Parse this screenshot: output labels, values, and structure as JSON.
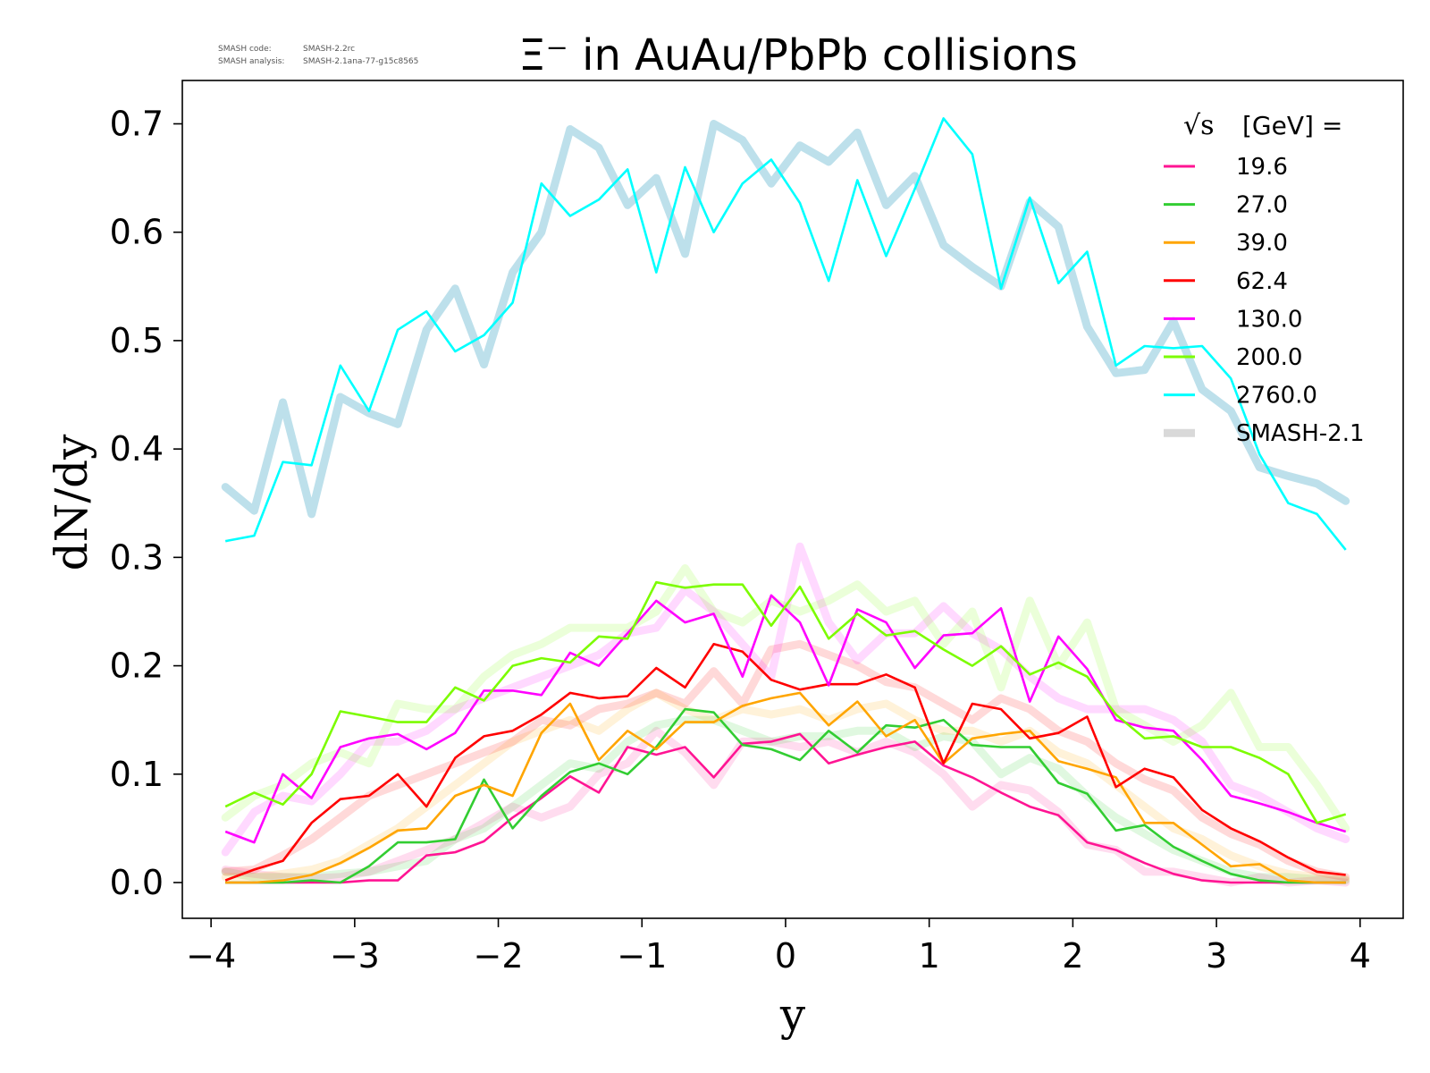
{
  "version": {
    "code_label": "SMASH code:",
    "code_value": "SMASH-2.2rc",
    "analysis_label": "SMASH analysis:",
    "analysis_value": "SMASH-2.1ana-77-g15c8565"
  },
  "chart_data": {
    "type": "line",
    "title": "Ξ⁻ in AuAu/PbPb collisions",
    "xlabel": "y",
    "ylabel": "dN/dy",
    "xlim": [
      -4.2,
      4.3
    ],
    "ylim": [
      -0.033,
      0.74
    ],
    "xticks": [
      -4,
      -3,
      -2,
      -1,
      0,
      1,
      2,
      3,
      4
    ],
    "xtick_labels": [
      "−4",
      "−3",
      "−2",
      "−1",
      "0",
      "1",
      "2",
      "3",
      "4"
    ],
    "yticks": [
      0.0,
      0.1,
      0.2,
      0.3,
      0.4,
      0.5,
      0.6,
      0.7
    ],
    "ytick_labels": [
      "0.0",
      "0.1",
      "0.2",
      "0.3",
      "0.4",
      "0.5",
      "0.6",
      "0.7"
    ],
    "grid": false,
    "legend_position": "top-right",
    "legend_title_sqrt": "√s",
    "legend_title_rest": "[GeV] =",
    "reference_label": "SMASH-2.1",
    "reference_legend_color": "#d9d9d9",
    "x": [
      -3.9,
      -3.7,
      -3.5,
      -3.3,
      -3.1,
      -2.9,
      -2.7,
      -2.5,
      -2.3,
      -2.1,
      -1.9,
      -1.7,
      -1.5,
      -1.3,
      -1.1,
      -0.9,
      -0.7,
      -0.5,
      -0.3,
      -0.1,
      0.1,
      0.3,
      0.5,
      0.7,
      0.9,
      1.1,
      1.3,
      1.5,
      1.7,
      1.9,
      2.1,
      2.3,
      2.5,
      2.7,
      2.9,
      3.1,
      3.3,
      3.5,
      3.7,
      3.9
    ],
    "series": [
      {
        "name": "19.6",
        "color": "#ff1493",
        "values": [
          0.0,
          0.0,
          0.0,
          0.0,
          0.0,
          0.002,
          0.002,
          0.025,
          0.028,
          0.038,
          0.06,
          0.078,
          0.098,
          0.083,
          0.125,
          0.118,
          0.125,
          0.097,
          0.128,
          0.13,
          0.137,
          0.11,
          0.118,
          0.125,
          0.13,
          0.108,
          0.097,
          0.083,
          0.07,
          0.062,
          0.037,
          0.03,
          0.018,
          0.008,
          0.002,
          0.0,
          0.0,
          0.0,
          0.0,
          0.0
        ],
        "reference": [
          0.012,
          0.008,
          0.005,
          0.004,
          0.005,
          0.01,
          0.02,
          0.03,
          0.04,
          0.055,
          0.07,
          0.06,
          0.07,
          0.1,
          0.11,
          0.14,
          0.12,
          0.09,
          0.13,
          0.13,
          0.125,
          0.13,
          0.12,
          0.13,
          0.12,
          0.1,
          0.07,
          0.09,
          0.085,
          0.065,
          0.035,
          0.03,
          0.01,
          0.01,
          0.005,
          0.0,
          0.005,
          0.0,
          0.002,
          0.0
        ]
      },
      {
        "name": "27.0",
        "color": "#32cd32",
        "values": [
          0.0,
          0.0,
          0.0,
          0.002,
          0.0,
          0.015,
          0.037,
          0.037,
          0.04,
          0.095,
          0.05,
          0.08,
          0.102,
          0.11,
          0.1,
          0.125,
          0.16,
          0.157,
          0.127,
          0.123,
          0.113,
          0.14,
          0.12,
          0.145,
          0.143,
          0.15,
          0.127,
          0.125,
          0.125,
          0.092,
          0.082,
          0.048,
          0.053,
          0.033,
          0.02,
          0.008,
          0.002,
          0.0,
          0.0,
          0.0
        ],
        "reference": [
          0.01,
          0.005,
          0.005,
          0.005,
          0.008,
          0.01,
          0.015,
          0.02,
          0.04,
          0.05,
          0.07,
          0.09,
          0.11,
          0.105,
          0.13,
          0.145,
          0.15,
          0.15,
          0.14,
          0.13,
          0.135,
          0.135,
          0.14,
          0.14,
          0.125,
          0.135,
          0.13,
          0.1,
          0.115,
          0.105,
          0.08,
          0.06,
          0.045,
          0.03,
          0.02,
          0.01,
          0.005,
          0.005,
          0.003,
          0.002
        ]
      },
      {
        "name": "39.0",
        "color": "#ffa500",
        "values": [
          0.0,
          0.0,
          0.002,
          0.007,
          0.018,
          0.032,
          0.048,
          0.05,
          0.08,
          0.09,
          0.08,
          0.138,
          0.165,
          0.113,
          0.14,
          0.123,
          0.148,
          0.148,
          0.163,
          0.17,
          0.175,
          0.145,
          0.167,
          0.135,
          0.15,
          0.11,
          0.133,
          0.137,
          0.14,
          0.112,
          0.105,
          0.097,
          0.055,
          0.055,
          0.035,
          0.015,
          0.017,
          0.002,
          0.0,
          0.0
        ],
        "reference": [
          0.005,
          0.005,
          0.008,
          0.012,
          0.02,
          0.035,
          0.05,
          0.07,
          0.09,
          0.11,
          0.13,
          0.14,
          0.15,
          0.14,
          0.16,
          0.175,
          0.16,
          0.15,
          0.16,
          0.155,
          0.16,
          0.15,
          0.16,
          0.165,
          0.15,
          0.14,
          0.14,
          0.13,
          0.14,
          0.12,
          0.11,
          0.09,
          0.07,
          0.05,
          0.04,
          0.025,
          0.015,
          0.008,
          0.005,
          0.003
        ]
      },
      {
        "name": "62.4",
        "color": "#ff0000",
        "values": [
          0.002,
          0.012,
          0.02,
          0.055,
          0.077,
          0.08,
          0.1,
          0.07,
          0.115,
          0.135,
          0.14,
          0.155,
          0.175,
          0.17,
          0.172,
          0.198,
          0.18,
          0.22,
          0.213,
          0.187,
          0.178,
          0.183,
          0.183,
          0.192,
          0.18,
          0.11,
          0.165,
          0.16,
          0.133,
          0.138,
          0.153,
          0.088,
          0.105,
          0.097,
          0.067,
          0.05,
          0.038,
          0.023,
          0.01,
          0.007
        ],
        "reference": [
          0.01,
          0.012,
          0.025,
          0.04,
          0.06,
          0.08,
          0.09,
          0.1,
          0.11,
          0.12,
          0.13,
          0.15,
          0.145,
          0.16,
          0.165,
          0.175,
          0.165,
          0.195,
          0.165,
          0.215,
          0.22,
          0.21,
          0.2,
          0.185,
          0.18,
          0.165,
          0.15,
          0.17,
          0.16,
          0.14,
          0.13,
          0.11,
          0.095,
          0.085,
          0.06,
          0.045,
          0.035,
          0.02,
          0.01,
          0.005
        ]
      },
      {
        "name": "130.0",
        "color": "#ff00ff",
        "values": [
          0.047,
          0.037,
          0.1,
          0.078,
          0.125,
          0.133,
          0.137,
          0.123,
          0.138,
          0.177,
          0.177,
          0.173,
          0.212,
          0.2,
          0.23,
          0.26,
          0.24,
          0.248,
          0.19,
          0.265,
          0.24,
          0.182,
          0.252,
          0.24,
          0.198,
          0.228,
          0.23,
          0.253,
          0.167,
          0.227,
          0.197,
          0.15,
          0.143,
          0.14,
          0.113,
          0.08,
          0.073,
          0.065,
          0.055,
          0.047
        ],
        "reference": [
          0.028,
          0.065,
          0.08,
          0.075,
          0.1,
          0.13,
          0.13,
          0.14,
          0.16,
          0.17,
          0.18,
          0.19,
          0.2,
          0.21,
          0.23,
          0.235,
          0.27,
          0.25,
          0.22,
          0.19,
          0.31,
          0.24,
          0.205,
          0.23,
          0.23,
          0.255,
          0.23,
          0.215,
          0.19,
          0.17,
          0.16,
          0.16,
          0.16,
          0.15,
          0.13,
          0.09,
          0.08,
          0.065,
          0.05,
          0.04
        ]
      },
      {
        "name": "200.0",
        "color": "#7cfc00",
        "values": [
          0.07,
          0.083,
          0.072,
          0.1,
          0.158,
          0.153,
          0.148,
          0.148,
          0.18,
          0.168,
          0.2,
          0.207,
          0.203,
          0.227,
          0.225,
          0.277,
          0.272,
          0.275,
          0.275,
          0.237,
          0.273,
          0.225,
          0.248,
          0.228,
          0.232,
          0.215,
          0.2,
          0.218,
          0.192,
          0.203,
          0.19,
          0.155,
          0.133,
          0.135,
          0.125,
          0.125,
          0.115,
          0.1,
          0.055,
          0.063
        ],
        "reference": [
          0.06,
          0.08,
          0.09,
          0.11,
          0.12,
          0.11,
          0.165,
          0.16,
          0.16,
          0.19,
          0.21,
          0.22,
          0.235,
          0.235,
          0.235,
          0.25,
          0.29,
          0.25,
          0.24,
          0.26,
          0.25,
          0.26,
          0.275,
          0.25,
          0.26,
          0.22,
          0.25,
          0.18,
          0.26,
          0.2,
          0.24,
          0.16,
          0.145,
          0.13,
          0.145,
          0.175,
          0.125,
          0.125,
          0.09,
          0.05
        ]
      },
      {
        "name": "2760.0",
        "color": "#00ffff",
        "values": [
          0.315,
          0.32,
          0.388,
          0.385,
          0.477,
          0.435,
          0.51,
          0.527,
          0.49,
          0.505,
          0.535,
          0.645,
          0.615,
          0.63,
          0.658,
          0.563,
          0.66,
          0.6,
          0.645,
          0.667,
          0.627,
          0.555,
          0.648,
          0.578,
          0.64,
          0.705,
          0.672,
          0.548,
          0.632,
          0.553,
          0.582,
          0.477,
          0.495,
          0.493,
          0.495,
          0.465,
          0.395,
          0.35,
          0.34,
          0.307
        ],
        "reference": [
          0.365,
          0.343,
          0.443,
          0.34,
          0.448,
          0.433,
          0.423,
          0.51,
          0.548,
          0.478,
          0.563,
          0.6,
          0.695,
          0.678,
          0.625,
          0.65,
          0.58,
          0.7,
          0.685,
          0.645,
          0.68,
          0.665,
          0.692,
          0.625,
          0.652,
          0.588,
          0.568,
          0.55,
          0.628,
          0.605,
          0.513,
          0.47,
          0.473,
          0.518,
          0.455,
          0.435,
          0.383,
          0.375,
          0.368,
          0.352
        ]
      }
    ]
  }
}
